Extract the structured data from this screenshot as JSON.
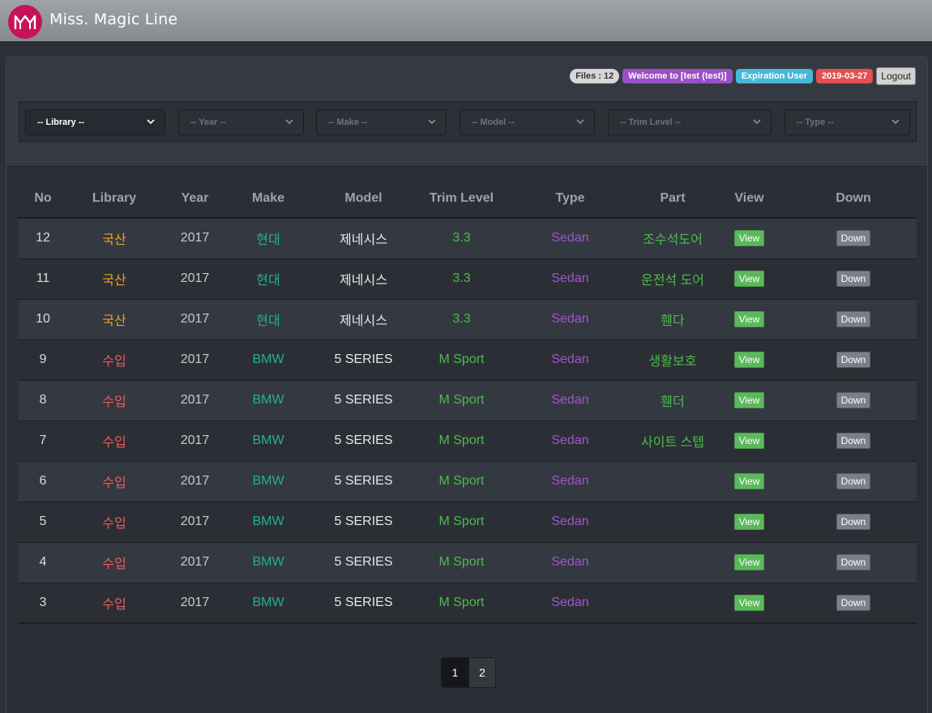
{
  "header": {
    "brand": "Miss. Magic Line",
    "logo": "mm-monogram-logo"
  },
  "status": {
    "files": "Files : 12",
    "welcome": "Welcome to [test (test)]",
    "expiration": "Expiration User",
    "date": "2019-03-27",
    "logout": "Logout"
  },
  "filters": {
    "library": "-- Library --",
    "year": "-- Year --",
    "make": "-- Make --",
    "model": "-- Model --",
    "trim": "-- Trim Level --",
    "type": "-- Type --"
  },
  "table": {
    "headers": [
      "No",
      "Library",
      "Year",
      "Make",
      "Model",
      "Trim Level",
      "Type",
      "Part",
      "View",
      "Down"
    ],
    "rows": [
      {
        "no": "12",
        "library": "국산",
        "year": "2017",
        "make": "현대",
        "model": "제네시스",
        "trim": "3.3",
        "type": "Sedan",
        "part": "조수석도어",
        "view": "View",
        "down": "Down"
      },
      {
        "no": "11",
        "library": "국산",
        "year": "2017",
        "make": "현대",
        "model": "제네시스",
        "trim": "3.3",
        "type": "Sedan",
        "part": "운전석 도어",
        "view": "View",
        "down": "Down"
      },
      {
        "no": "10",
        "library": "국산",
        "year": "2017",
        "make": "현대",
        "model": "제네시스",
        "trim": "3.3",
        "type": "Sedan",
        "part": "휀다",
        "view": "View",
        "down": "Down"
      },
      {
        "no": "9",
        "library": "수입",
        "year": "2017",
        "make": "BMW",
        "model": "5 SERIES",
        "trim": "M Sport",
        "type": "Sedan",
        "part": "생활보호",
        "view": "View",
        "down": "Down"
      },
      {
        "no": "8",
        "library": "수입",
        "year": "2017",
        "make": "BMW",
        "model": "5 SERIES",
        "trim": "M Sport",
        "type": "Sedan",
        "part": "휀더",
        "view": "View",
        "down": "Down"
      },
      {
        "no": "7",
        "library": "수입",
        "year": "2017",
        "make": "BMW",
        "model": "5 SERIES",
        "trim": "M Sport",
        "type": "Sedan",
        "part": "사이트 스텝",
        "view": "View",
        "down": "Down"
      },
      {
        "no": "6",
        "library": "수입",
        "year": "2017",
        "make": "BMW",
        "model": "5 SERIES",
        "trim": "M Sport",
        "type": "Sedan",
        "part": "",
        "view": "View",
        "down": "Down"
      },
      {
        "no": "5",
        "library": "수입",
        "year": "2017",
        "make": "BMW",
        "model": "5 SERIES",
        "trim": "M Sport",
        "type": "Sedan",
        "part": "",
        "view": "View",
        "down": "Down"
      },
      {
        "no": "4",
        "library": "수입",
        "year": "2017",
        "make": "BMW",
        "model": "5 SERIES",
        "trim": "M Sport",
        "type": "Sedan",
        "part": "",
        "view": "View",
        "down": "Down"
      },
      {
        "no": "3",
        "library": "수입",
        "year": "2017",
        "make": "BMW",
        "model": "5 SERIES",
        "trim": "M Sport",
        "type": "Sedan",
        "part": "",
        "view": "View",
        "down": "Down"
      }
    ]
  },
  "pagination": {
    "pages": [
      "1",
      "2"
    ],
    "current": "1"
  },
  "colors": {
    "brand": "#c8125a",
    "domestic": "#f0a020",
    "import": "#f05a5a",
    "make": "#25b090",
    "trim": "#4cbb4c",
    "type": "#a056c9",
    "view_button": "#5cb85c",
    "down_button": "#7b8088"
  }
}
